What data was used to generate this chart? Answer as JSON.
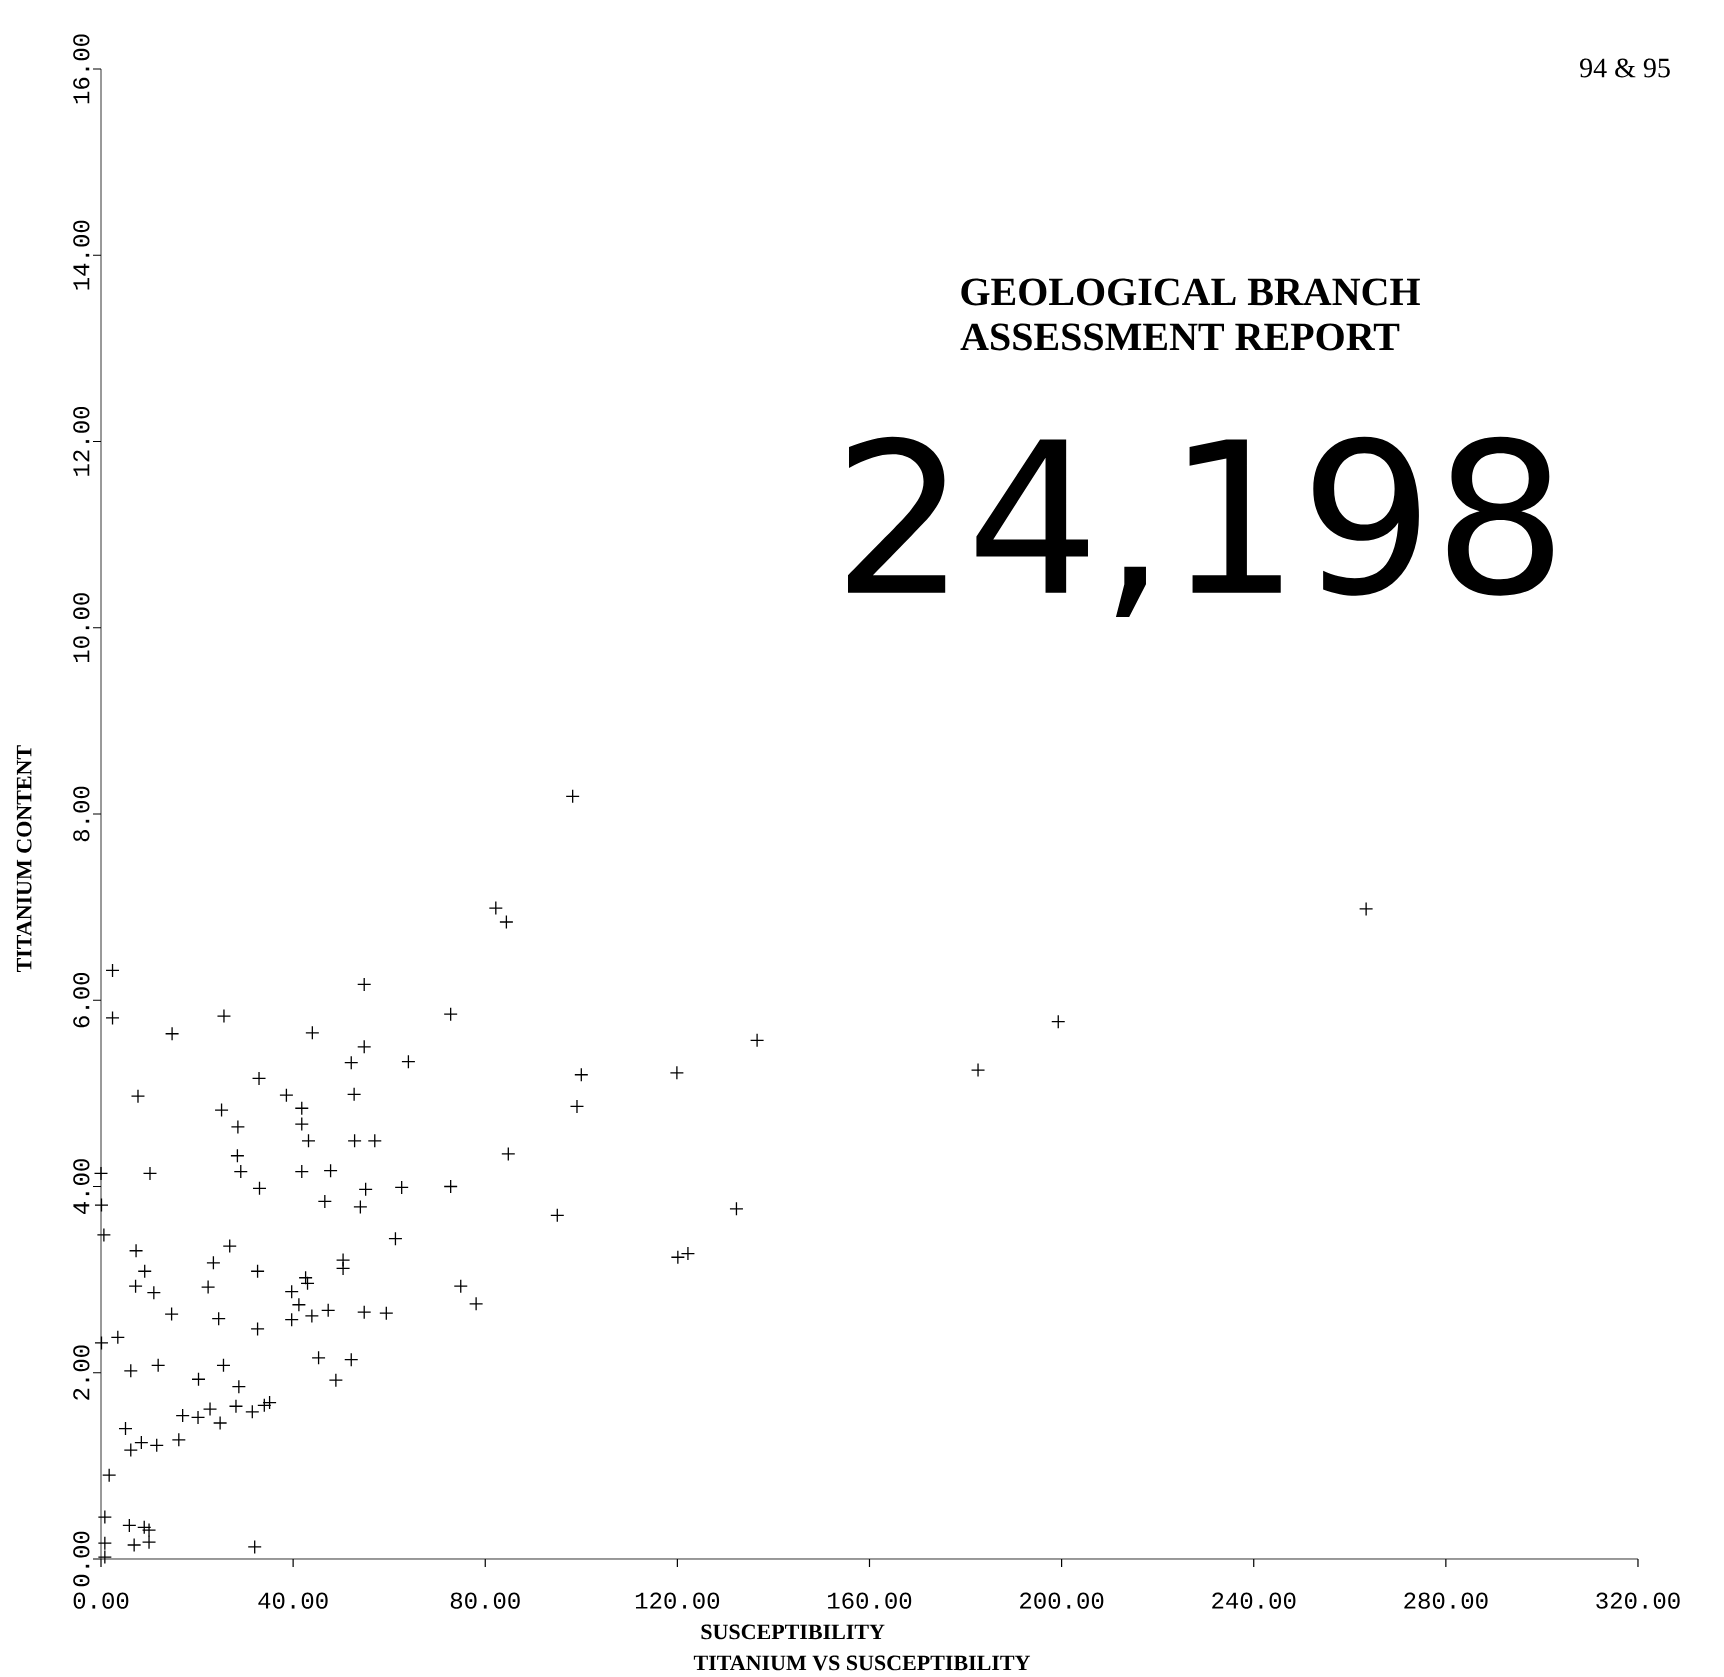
{
  "chart_data": {
    "type": "scatter",
    "title": "TITANIUM VS SUSCEPTIBILITY",
    "xlabel": "SUSCEPTIBILITY",
    "ylabel": "TITANIUM CONTENT",
    "annotations": [
      "94 & 95",
      "GEOLOGICAL BRANCH",
      "ASSESSMENT REPORT",
      "24,198"
    ],
    "x": [
      2.4,
      2.4,
      14.8,
      25.6,
      54.8,
      72.8,
      44.0,
      54.8,
      52.1,
      64.0,
      32.9,
      38.6,
      52.7,
      7.7,
      25.1,
      41.8,
      28.5,
      41.8,
      43.2,
      52.8,
      57.0,
      28.4,
      29.1,
      10.2,
      0.0,
      41.8,
      47.8,
      33.0,
      46.6,
      55.1,
      62.6,
      72.8,
      84.8,
      95.0,
      54.0,
      0.1,
      0.6,
      7.3,
      26.8,
      9.1,
      23.4,
      32.6,
      50.4,
      50.4,
      42.6,
      7.2,
      11.0,
      22.3,
      39.7,
      43.0,
      61.3,
      74.9,
      78.1,
      59.4,
      14.7,
      24.5,
      32.6,
      39.7,
      41.2,
      43.9,
      47.3,
      54.8,
      3.5,
      0.1,
      45.3,
      52.1,
      48.9,
      6.2,
      11.9,
      20.3,
      25.5,
      28.7,
      22.7,
      28.1,
      17.0,
      20.2,
      24.8,
      31.5,
      34.0,
      35.1,
      5.1,
      6.2,
      8.4,
      11.6,
      16.2,
      1.7,
      0.8,
      5.9,
      9.0,
      10.0,
      6.9,
      10.0,
      0.8,
      32.0,
      0.8,
      98.2,
      82.2,
      84.4,
      263.4,
      199.3,
      136.6,
      182.6,
      119.9,
      100.0,
      99.1,
      132.3,
      120.1,
      122.2
    ],
    "values": [
      6.32,
      5.81,
      5.64,
      5.83,
      6.17,
      5.85,
      5.65,
      5.5,
      5.33,
      5.34,
      5.16,
      4.98,
      4.99,
      4.97,
      4.82,
      4.84,
      4.64,
      4.67,
      4.49,
      4.49,
      4.49,
      4.33,
      4.16,
      4.14,
      4.14,
      4.16,
      4.17,
      3.98,
      3.84,
      3.97,
      3.99,
      4.0,
      4.35,
      3.69,
      3.78,
      3.8,
      3.48,
      3.31,
      3.36,
      3.09,
      3.18,
      3.09,
      3.21,
      3.12,
      3.02,
      2.93,
      2.86,
      2.92,
      2.87,
      2.96,
      3.44,
      2.93,
      2.74,
      2.64,
      2.63,
      2.58,
      2.47,
      2.57,
      2.73,
      2.61,
      2.67,
      2.65,
      2.38,
      2.32,
      2.16,
      2.14,
      1.92,
      2.02,
      2.08,
      1.93,
      2.08,
      1.85,
      1.61,
      1.64,
      1.54,
      1.52,
      1.46,
      1.58,
      1.65,
      1.68,
      1.4,
      1.17,
      1.25,
      1.22,
      1.28,
      0.9,
      0.45,
      0.36,
      0.34,
      0.31,
      0.15,
      0.18,
      0.17,
      0.13,
      0.02,
      8.19,
      6.99,
      6.84,
      6.98,
      5.77,
      5.57,
      5.25,
      5.22,
      5.2,
      4.86,
      3.76,
      3.24,
      3.28
    ],
    "color": "#000000",
    "marker": "cross",
    "xlim": [
      0,
      320
    ],
    "ylim": [
      0,
      16
    ],
    "xticks": [
      {
        "value": 0,
        "label": "0.00"
      },
      {
        "value": 40,
        "label": "40.00"
      },
      {
        "value": 80,
        "label": "80.00"
      },
      {
        "value": 120,
        "label": "120.00"
      },
      {
        "value": 160,
        "label": "160.00"
      },
      {
        "value": 200,
        "label": "200.00"
      },
      {
        "value": 240,
        "label": "240.00"
      },
      {
        "value": 280,
        "label": "280.00"
      },
      {
        "value": 320,
        "label": "320.00"
      }
    ],
    "yticks": [
      {
        "value": 0,
        "label": "0.00"
      },
      {
        "value": 2,
        "label": "2.00"
      },
      {
        "value": 4,
        "label": "4.00"
      },
      {
        "value": 6,
        "label": "6.00"
      },
      {
        "value": 8,
        "label": "8.00"
      },
      {
        "value": 10,
        "label": "10.00"
      },
      {
        "value": 12,
        "label": "12.00"
      },
      {
        "value": 14,
        "label": "14.00"
      },
      {
        "value": 16,
        "label": "16.00"
      }
    ]
  }
}
